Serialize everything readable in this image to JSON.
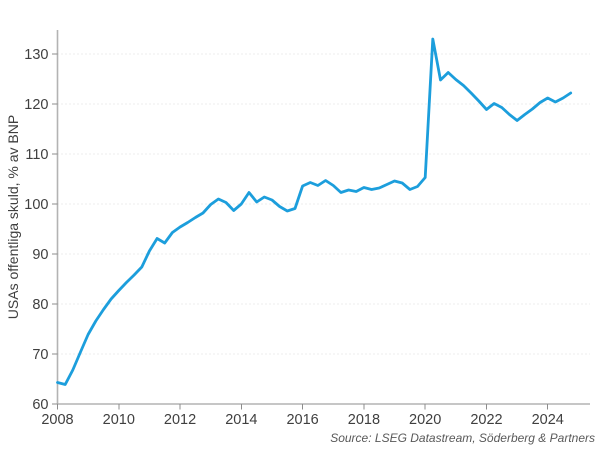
{
  "chart_data": {
    "type": "line",
    "title": "",
    "xlabel": "",
    "ylabel": "USAs offentliga skuld, % av BNP",
    "source_note": "Source: LSEG Datastream, Söderberg & Partners",
    "grid": "horizontal-dotted",
    "legend": "none",
    "xlim": [
      2007.9,
      2025.4
    ],
    "ylim": [
      60,
      134.8
    ],
    "x_ticks": [
      2008,
      2010,
      2012,
      2014,
      2016,
      2018,
      2020,
      2022,
      2024
    ],
    "y_ticks": [
      60,
      70,
      80,
      90,
      100,
      110,
      120,
      130
    ],
    "series": [
      {
        "name": "USAs offentliga skuld, % av BNP",
        "color": "#1c9edc",
        "x": [
          2008.0,
          2008.25,
          2008.5,
          2008.75,
          2009.0,
          2009.25,
          2009.5,
          2009.75,
          2010.0,
          2010.25,
          2010.5,
          2010.75,
          2011.0,
          2011.25,
          2011.5,
          2011.75,
          2012.0,
          2012.25,
          2012.5,
          2012.75,
          2013.0,
          2013.25,
          2013.5,
          2013.75,
          2014.0,
          2014.25,
          2014.5,
          2014.75,
          2015.0,
          2015.25,
          2015.5,
          2015.75,
          2016.0,
          2016.25,
          2016.5,
          2016.75,
          2017.0,
          2017.25,
          2017.5,
          2017.75,
          2018.0,
          2018.25,
          2018.5,
          2018.75,
          2019.0,
          2019.25,
          2019.5,
          2019.75,
          2020.0,
          2020.25,
          2020.5,
          2020.75,
          2021.0,
          2021.25,
          2021.5,
          2021.75,
          2022.0,
          2022.25,
          2022.5,
          2022.75,
          2023.0,
          2023.25,
          2023.5,
          2023.75,
          2024.0,
          2024.25,
          2024.5,
          2024.75
        ],
        "values": [
          64.3,
          63.9,
          66.8,
          70.4,
          73.9,
          76.6,
          78.9,
          81.0,
          82.7,
          84.3,
          85.8,
          87.4,
          90.6,
          93.1,
          92.2,
          94.3,
          95.4,
          96.3,
          97.3,
          98.2,
          99.9,
          101.0,
          100.3,
          98.7,
          100.0,
          102.3,
          100.4,
          101.4,
          100.8,
          99.5,
          98.6,
          99.1,
          103.6,
          104.3,
          103.7,
          104.7,
          103.7,
          102.3,
          102.8,
          102.5,
          103.3,
          102.9,
          103.2,
          103.9,
          104.6,
          104.2,
          102.9,
          103.5,
          105.3,
          133.0,
          124.8,
          126.3,
          124.9,
          123.7,
          122.2,
          120.6,
          118.9,
          120.1,
          119.3,
          117.9,
          116.7,
          117.9,
          119.0,
          120.3,
          121.2,
          120.4,
          121.2,
          122.2
        ]
      }
    ]
  },
  "colors": {
    "background": "#ffffff",
    "line": "#1c9edc",
    "axis": "#b3b3b3",
    "tick_label": "#3f3f3f",
    "source": "#595959"
  }
}
